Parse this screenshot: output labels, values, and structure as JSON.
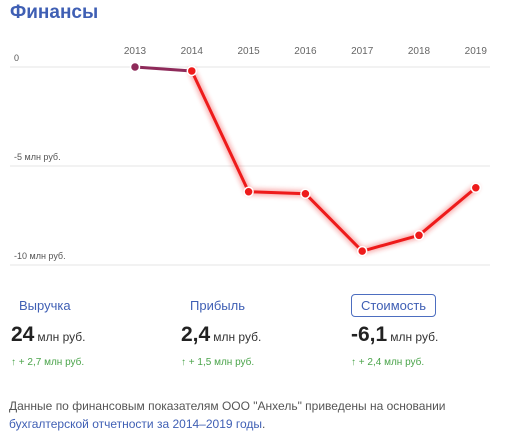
{
  "header": {
    "title": "Финансы"
  },
  "chart_data": {
    "type": "line",
    "x": [
      "2013",
      "2014",
      "2015",
      "2016",
      "2017",
      "2018",
      "2019"
    ],
    "values": [
      0,
      -0.2,
      -6.3,
      -6.4,
      -9.3,
      -8.5,
      -6.1
    ],
    "y_tick_values": [
      0,
      -5,
      -10
    ],
    "y_tick_labels": [
      "0",
      "-5 млн руб.",
      "-10 млн руб."
    ],
    "ylim": [
      -10,
      0
    ],
    "grid": true,
    "colors": {
      "first_segment": "#8e2a5a",
      "line": "#ee1b1b"
    }
  },
  "tabs": [
    {
      "label": "Выручка",
      "value": "24",
      "unit": "млн руб.",
      "delta": "↑ + 2,7 млн руб."
    },
    {
      "label": "Прибыль",
      "value": "2,4",
      "unit": "млн руб.",
      "delta": "↑ + 1,5 млн руб."
    },
    {
      "label": "Стоимость",
      "value": "-6,1",
      "unit": "млн руб.",
      "delta": "↑ + 2,4 млн руб."
    }
  ],
  "footnote": {
    "text": "Данные по финансовым показателям ООО \"Анхель\" приведены на основании ",
    "link": "бухгалтерской отчетности за 2014–2019 годы",
    "end": "."
  },
  "colors": {
    "accent": "#3f5fb4",
    "positive": "#4ba44b"
  }
}
